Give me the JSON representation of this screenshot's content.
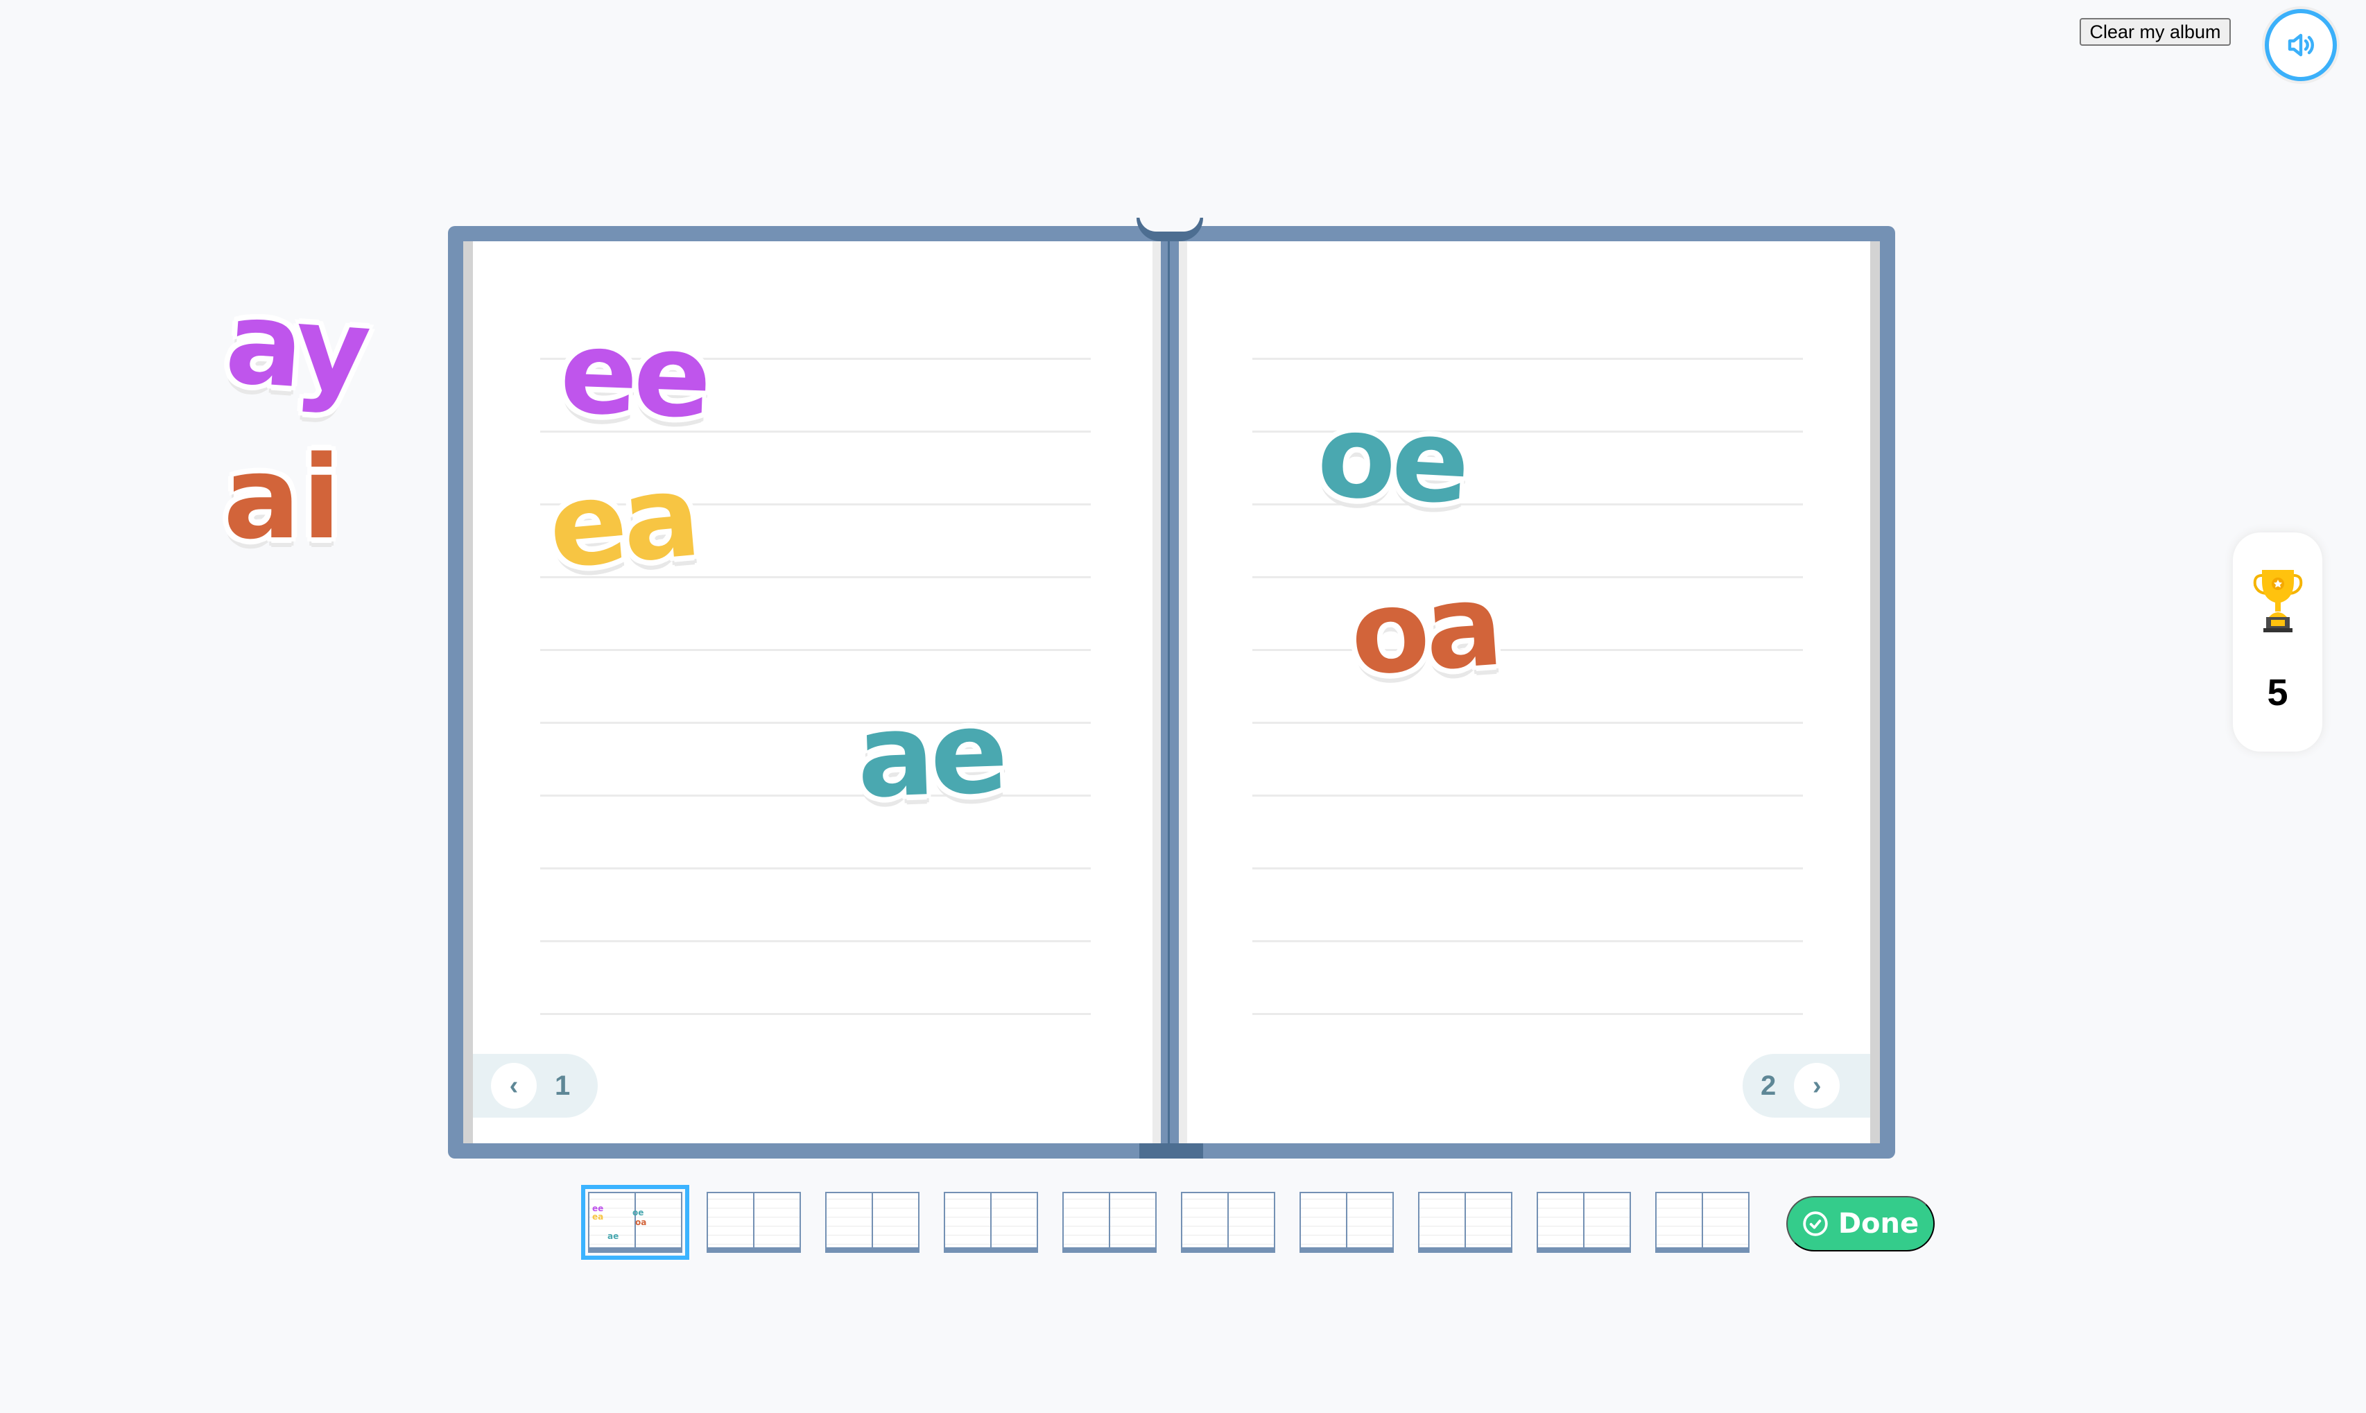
{
  "header": {
    "clear_label": "Clear my album",
    "sound_icon": "speaker-icon"
  },
  "colors": {
    "book": "#7491b4",
    "accent": "#3bb0fa",
    "done": "#34cc8b",
    "purple": "#bf55ec",
    "orange": "#d2643a",
    "yellow": "#f7c543",
    "teal": "#4aa8b0"
  },
  "tray": [
    {
      "text": "ay",
      "color": "#bf55ec"
    },
    {
      "text": "ai",
      "color": "#d2643a"
    }
  ],
  "album": {
    "left_page": {
      "number": "1",
      "stickers": [
        {
          "text": "ee",
          "color": "#bf55ec"
        },
        {
          "text": "ea",
          "color": "#f7c543"
        },
        {
          "text": "ae",
          "color": "#4aa8b0"
        }
      ]
    },
    "right_page": {
      "number": "2",
      "stickers": [
        {
          "text": "oe",
          "color": "#4aa8b0"
        },
        {
          "text": "oa",
          "color": "#d2643a"
        }
      ]
    }
  },
  "score": {
    "icon": "trophy-icon",
    "value": "5"
  },
  "thumbnails": {
    "count": 10,
    "selected": 1
  },
  "done_label": "Done"
}
